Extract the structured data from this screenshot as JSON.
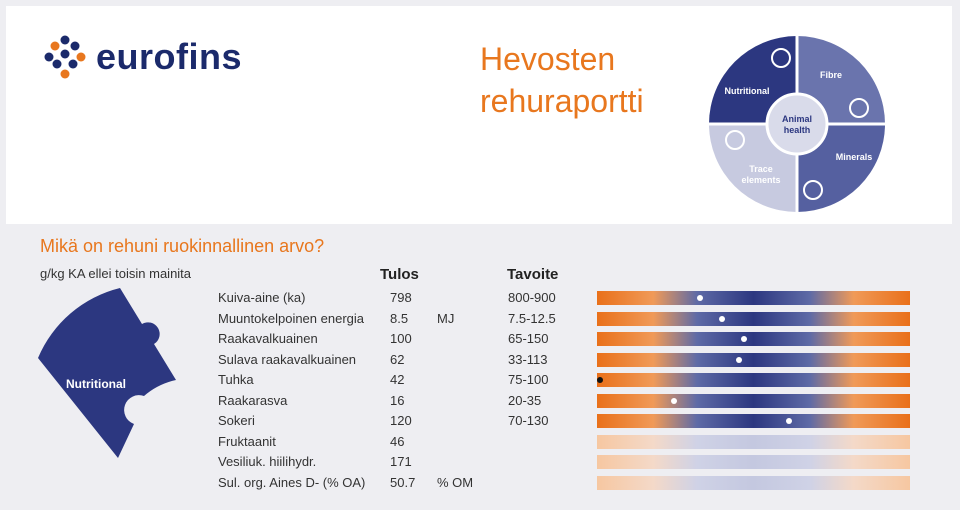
{
  "header": {
    "logo_text": "eurofins",
    "title_line1": "Hevosten",
    "title_line2": "rehuraportti"
  },
  "puzzle": {
    "nutritional": "Nutritional",
    "fibre": "Fibre",
    "animal_health_1": "Animal",
    "animal_health_2": "health",
    "minerals": "Minerals",
    "trace_1": "Trace",
    "trace_2": "elements"
  },
  "section": {
    "question": "Mikä on rehuni ruokinnallinen arvo?",
    "unit_note": "g/kg KA ellei toisin mainita",
    "result_header": "Tulos",
    "target_header": "Tavoite",
    "piece_label": "Nutritional"
  },
  "rows": [
    {
      "label": "Kuiva-aine (ka)",
      "value": "798",
      "unit": "",
      "target": "800-900",
      "marker": 0.33,
      "faded": false,
      "dark": false
    },
    {
      "label": "Muuntokelpoinen energia",
      "value": "8.5",
      "unit": "MJ",
      "target": "7.5-12.5",
      "marker": 0.4,
      "faded": false,
      "dark": false
    },
    {
      "label": "Raakavalkuainen",
      "value": "100",
      "unit": "",
      "target": "65-150",
      "marker": 0.47,
      "faded": false,
      "dark": false
    },
    {
      "label": "Sulava raakavalkuainen",
      "value": "62",
      "unit": "",
      "target": "33-113",
      "marker": 0.455,
      "faded": false,
      "dark": false
    },
    {
      "label": "Tuhka",
      "value": "42",
      "unit": "",
      "target": "75-100",
      "marker": 0.01,
      "faded": false,
      "dark": true
    },
    {
      "label": "Raakarasva",
      "value": "16",
      "unit": "",
      "target": "20-35",
      "marker": 0.245,
      "faded": false,
      "dark": false
    },
    {
      "label": "Sokeri",
      "value": "120",
      "unit": "",
      "target": "70-130",
      "marker": 0.615,
      "faded": false,
      "dark": false
    },
    {
      "label": "Fruktaanit",
      "value": "46",
      "unit": "",
      "target": "",
      "marker": null,
      "faded": true,
      "dark": false
    },
    {
      "label": "Vesiliuk. hiilihydr.",
      "value": "171",
      "unit": "",
      "target": "",
      "marker": null,
      "faded": true,
      "dark": false
    },
    {
      "label": "Sul. org. Aines D- (% OA)",
      "value": "50.7",
      "unit": "% OM",
      "target": "",
      "marker": null,
      "faded": true,
      "dark": false
    }
  ],
  "colors": {
    "brand_orange": "#e8771e",
    "brand_navy": "#1b2a6b"
  }
}
